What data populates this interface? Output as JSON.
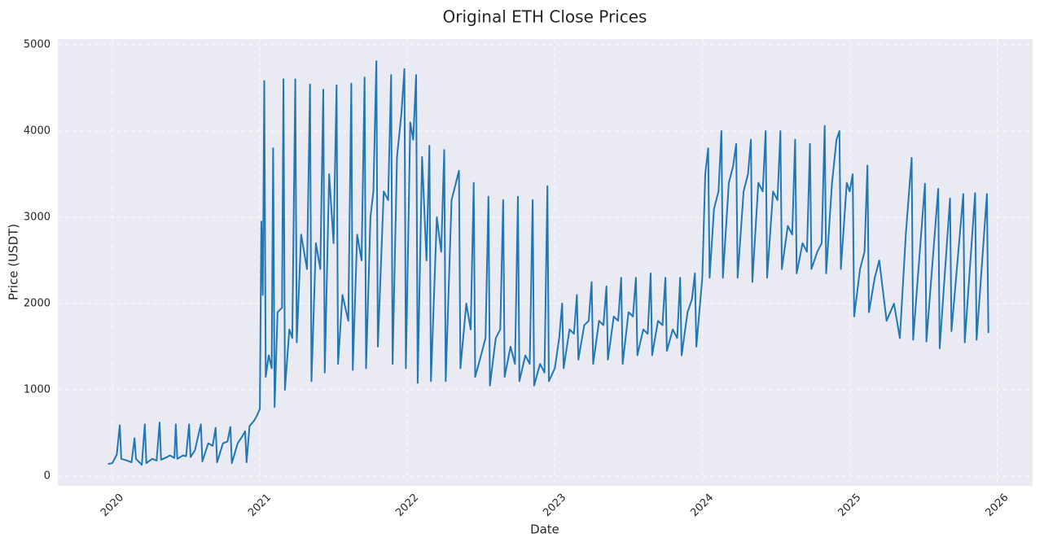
{
  "chart_data": {
    "type": "line",
    "title": "Original ETH Close Prices",
    "x_label": "Date",
    "y_label": "Price (USDT)",
    "xlim": [
      2019.63,
      2026.24
    ],
    "xticks": [
      2020,
      2021,
      2022,
      2023,
      2024,
      2025,
      2026
    ],
    "ylim": [
      -113,
      5066
    ],
    "yticks": [
      0,
      1000,
      2000,
      3000,
      4000,
      5000
    ],
    "grid": true,
    "series": [
      {
        "name": "Close",
        "color": "#1f77b4",
        "x": [
          2019.97,
          2020.0,
          2020.03,
          2020.05,
          2020.06,
          2020.1,
          2020.13,
          2020.15,
          2020.16,
          2020.2,
          2020.22,
          2020.23,
          2020.27,
          2020.3,
          2020.32,
          2020.33,
          2020.37,
          2020.39,
          2020.42,
          2020.43,
          2020.44,
          2020.48,
          2020.5,
          2020.52,
          2020.53,
          2020.56,
          2020.6,
          2020.61,
          2020.65,
          2020.68,
          2020.7,
          2020.71,
          2020.75,
          2020.78,
          2020.8,
          2020.81,
          2020.85,
          2020.88,
          2020.9,
          2020.91,
          2020.93,
          2020.96,
          2020.98,
          2021.0,
          2021.01,
          2021.02,
          2021.03,
          2021.04,
          2021.06,
          2021.08,
          2021.09,
          2021.1,
          2021.12,
          2021.15,
          2021.16,
          2021.17,
          2021.2,
          2021.22,
          2021.24,
          2021.25,
          2021.28,
          2021.32,
          2021.34,
          2021.35,
          2021.38,
          2021.41,
          2021.43,
          2021.44,
          2021.47,
          2021.5,
          2021.52,
          2021.53,
          2021.56,
          2021.6,
          2021.62,
          2021.63,
          2021.66,
          2021.69,
          2021.71,
          2021.72,
          2021.75,
          2021.77,
          2021.79,
          2021.8,
          2021.84,
          2021.87,
          2021.89,
          2021.9,
          2021.93,
          2021.96,
          2021.98,
          2021.99,
          2022.02,
          2022.04,
          2022.06,
          2022.07,
          2022.1,
          2022.13,
          2022.15,
          2022.16,
          2022.2,
          2022.23,
          2022.25,
          2022.26,
          2022.3,
          2022.33,
          2022.35,
          2022.36,
          2022.4,
          2022.43,
          2022.45,
          2022.46,
          2022.5,
          2022.53,
          2022.55,
          2022.56,
          2022.6,
          2022.63,
          2022.65,
          2022.66,
          2022.7,
          2022.73,
          2022.75,
          2022.76,
          2022.8,
          2022.83,
          2022.85,
          2022.86,
          2022.9,
          2022.93,
          2022.95,
          2022.96,
          2023.0,
          2023.03,
          2023.05,
          2023.06,
          2023.1,
          2023.13,
          2023.15,
          2023.16,
          2023.2,
          2023.23,
          2023.25,
          2023.26,
          2023.3,
          2023.33,
          2023.35,
          2023.36,
          2023.4,
          2023.43,
          2023.45,
          2023.46,
          2023.5,
          2023.53,
          2023.55,
          2023.56,
          2023.6,
          2023.63,
          2023.65,
          2023.66,
          2023.7,
          2023.73,
          2023.75,
          2023.76,
          2023.8,
          2023.83,
          2023.85,
          2023.86,
          2023.9,
          2023.93,
          2023.95,
          2023.96,
          2024.0,
          2024.02,
          2024.04,
          2024.05,
          2024.08,
          2024.11,
          2024.13,
          2024.14,
          2024.18,
          2024.21,
          2024.23,
          2024.24,
          2024.28,
          2024.31,
          2024.33,
          2024.34,
          2024.38,
          2024.41,
          2024.43,
          2024.44,
          2024.48,
          2024.51,
          2024.53,
          2024.54,
          2024.58,
          2024.61,
          2024.63,
          2024.64,
          2024.68,
          2024.71,
          2024.73,
          2024.74,
          2024.78,
          2024.81,
          2024.83,
          2024.84,
          2024.88,
          2024.91,
          2024.93,
          2024.94,
          2024.98,
          2025.0,
          2025.02,
          2025.03,
          2025.07,
          2025.1,
          2025.12,
          2025.13,
          2025.17,
          2025.2,
          2025.25,
          2025.3,
          2025.34,
          2025.38,
          2025.42,
          2025.43,
          2025.51,
          2025.52,
          2025.6,
          2025.61,
          2025.68,
          2025.69,
          2025.77,
          2025.78,
          2025.85,
          2025.86,
          2025.93,
          2025.94
        ],
        "values": [
          140,
          150,
          250,
          590,
          200,
          180,
          160,
          440,
          200,
          130,
          600,
          150,
          200,
          180,
          620,
          190,
          220,
          240,
          210,
          600,
          200,
          240,
          230,
          600,
          220,
          300,
          600,
          170,
          380,
          350,
          560,
          160,
          380,
          400,
          570,
          150,
          380,
          460,
          520,
          160,
          580,
          640,
          700,
          780,
          2950,
          2100,
          4580,
          1150,
          1400,
          1250,
          3800,
          800,
          1900,
          1950,
          4600,
          1000,
          1700,
          1600,
          4600,
          1550,
          2800,
          2400,
          4540,
          1100,
          2700,
          2400,
          4480,
          1200,
          3500,
          2700,
          4530,
          1300,
          2100,
          1800,
          4550,
          1230,
          2800,
          2500,
          4620,
          1250,
          3000,
          3300,
          4810,
          1500,
          3300,
          3200,
          4650,
          1300,
          3700,
          4200,
          4720,
          1250,
          4100,
          3900,
          4650,
          1080,
          3700,
          2500,
          3830,
          1100,
          3000,
          2600,
          3780,
          1100,
          3200,
          3400,
          3540,
          1250,
          2000,
          1700,
          3400,
          1150,
          1400,
          1600,
          3240,
          1050,
          1600,
          1700,
          3200,
          1150,
          1500,
          1300,
          3240,
          1100,
          1400,
          1300,
          3200,
          1050,
          1300,
          1200,
          3360,
          1100,
          1250,
          1600,
          2000,
          1250,
          1700,
          1650,
          2100,
          1350,
          1750,
          1800,
          2250,
          1300,
          1800,
          1750,
          2200,
          1350,
          1850,
          1800,
          2300,
          1300,
          1900,
          1850,
          2300,
          1400,
          1700,
          1650,
          2350,
          1400,
          1800,
          1750,
          2300,
          1450,
          1700,
          1600,
          2300,
          1400,
          1900,
          2050,
          2350,
          1500,
          2300,
          3500,
          3800,
          2300,
          3100,
          3300,
          4000,
          2300,
          3400,
          3600,
          3850,
          2300,
          3300,
          3500,
          3900,
          2250,
          3400,
          3300,
          4000,
          2300,
          3300,
          3200,
          4000,
          2400,
          2900,
          2800,
          3900,
          2350,
          2700,
          2600,
          3850,
          2400,
          2600,
          2700,
          4060,
          2350,
          3400,
          3900,
          4000,
          2400,
          3400,
          3300,
          3500,
          1850,
          2400,
          2600,
          3600,
          1900,
          2300,
          2500,
          1800,
          2000,
          1600,
          2800,
          3690,
          1580,
          3390,
          1560,
          3330,
          1480,
          3220,
          1680,
          3270,
          1550,
          3280,
          1580,
          3270,
          1660
        ]
      }
    ]
  }
}
